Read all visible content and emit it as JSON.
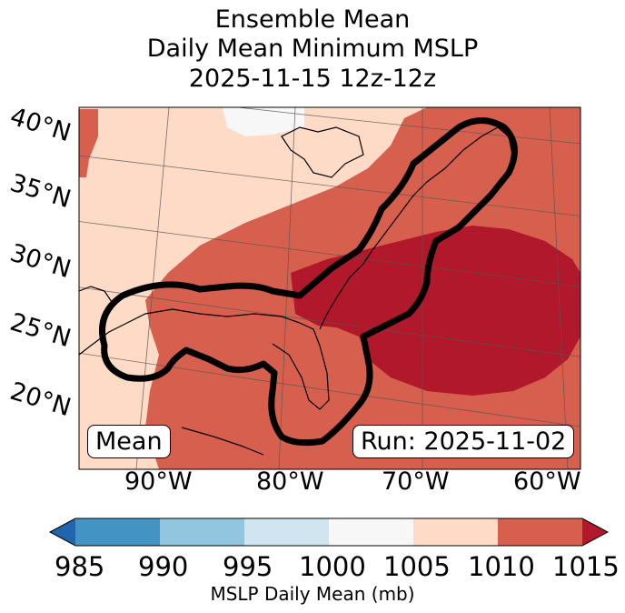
{
  "title": {
    "line1": "Ensemble Mean",
    "line2": "Daily Mean Minimum MSLP",
    "line3": "2025-11-15 12z-12z"
  },
  "map": {
    "latitude_labels": [
      "40°N",
      "35°N",
      "30°N",
      "25°N",
      "20°N"
    ],
    "longitude_labels": [
      "90°W",
      "80°W",
      "70°W",
      "60°W"
    ],
    "mean_box": "Mean",
    "run_box": "Run: 2025-11-02"
  },
  "colorbar": {
    "ticks": [
      "985",
      "990",
      "995",
      "1000",
      "1005",
      "1010",
      "1015"
    ],
    "label": "MSLP Daily Mean (mb)",
    "colors": [
      "#2166ac",
      "#4393c3",
      "#92c5de",
      "#d1e5f0",
      "#f7f7f7",
      "#fddbc7",
      "#d6604d",
      "#b2182b"
    ]
  }
}
